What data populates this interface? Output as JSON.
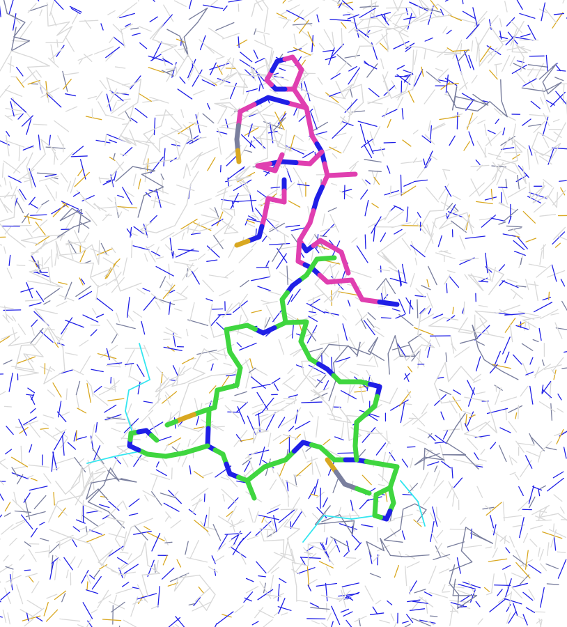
{
  "scene": {
    "type": "molecular-structure-render",
    "representation": "wireframe-with-sticks",
    "background_color": "#ffffff"
  },
  "colors": {
    "carbon_background": "#d9d9d9",
    "nitrogen": "#1f1fe6",
    "sulfur": "#d9a821",
    "slate_carbon": "#7a7f9e",
    "ligand_magenta": "#e03fb0",
    "ligand_green": "#3fd63f",
    "cyan_fragment": "#33e6f0"
  },
  "highlighted_groups": [
    {
      "name": "magenta-ligand",
      "color_key": "ligand_magenta"
    },
    {
      "name": "green-ligand",
      "color_key": "ligand_green"
    },
    {
      "name": "cyan-fragments",
      "color_key": "cyan_fragment"
    }
  ]
}
